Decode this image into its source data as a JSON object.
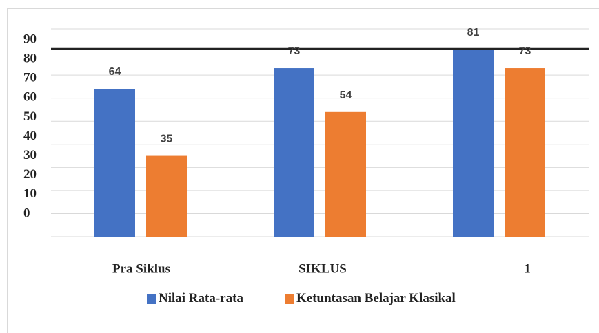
{
  "chart_data": {
    "type": "bar",
    "categories": [
      "Pra Siklus",
      "SIKLUS",
      "1"
    ],
    "series": [
      {
        "name": "Nilai Rata-rata",
        "color": "#4472c4",
        "values": [
          64,
          73,
          81
        ]
      },
      {
        "name": "Ketuntasan Belajar Klasikal",
        "color": "#ed7d31",
        "values": [
          35,
          54,
          73
        ]
      }
    ],
    "ylim": [
      0,
      90
    ],
    "yticks": [
      0,
      10,
      20,
      30,
      40,
      50,
      60,
      70,
      80,
      90
    ],
    "grid": true
  }
}
